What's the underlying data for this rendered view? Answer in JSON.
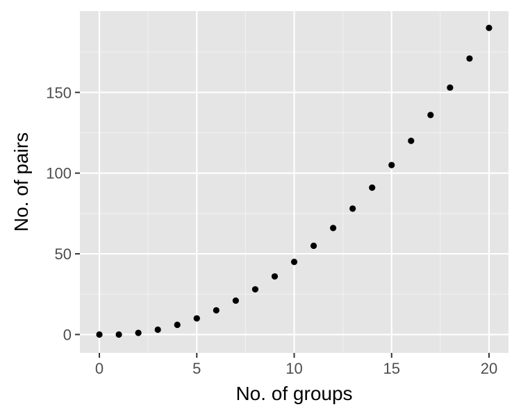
{
  "chart_data": {
    "type": "scatter",
    "title": "",
    "xlabel": "No. of groups",
    "ylabel": "No. of pairs",
    "xlim": [
      -1,
      21
    ],
    "ylim": [
      -11.4,
      200.4
    ],
    "x_ticks": [
      0,
      5,
      10,
      15,
      20
    ],
    "x_tick_labels": [
      "0",
      "5",
      "10",
      "15",
      "20"
    ],
    "x_minor_ticks": [
      2.5,
      7.5,
      12.5,
      17.5
    ],
    "y_ticks": [
      0,
      50,
      100,
      150
    ],
    "y_tick_labels": [
      "0",
      "50",
      "100",
      "150"
    ],
    "y_minor_ticks": [
      25,
      75,
      125,
      175
    ],
    "grid": true,
    "legend": "none",
    "series": [
      {
        "x": [
          0,
          1,
          2,
          3,
          4,
          5,
          6,
          7,
          8,
          9,
          10,
          11,
          12,
          13,
          14,
          15,
          16,
          17,
          18,
          19,
          20
        ],
        "y": [
          0,
          0,
          1,
          3,
          6,
          10,
          15,
          21,
          28,
          36,
          45,
          55,
          66,
          78,
          91,
          105,
          120,
          136,
          153,
          171,
          190
        ]
      }
    ],
    "colors": {
      "panel_background": "#e5e5e5",
      "grid_major": "#ffffff",
      "grid_minor": "#f2f2f2",
      "point": "#000000",
      "tick_label": "#4d4d4d",
      "tick_mark": "#333333"
    }
  }
}
